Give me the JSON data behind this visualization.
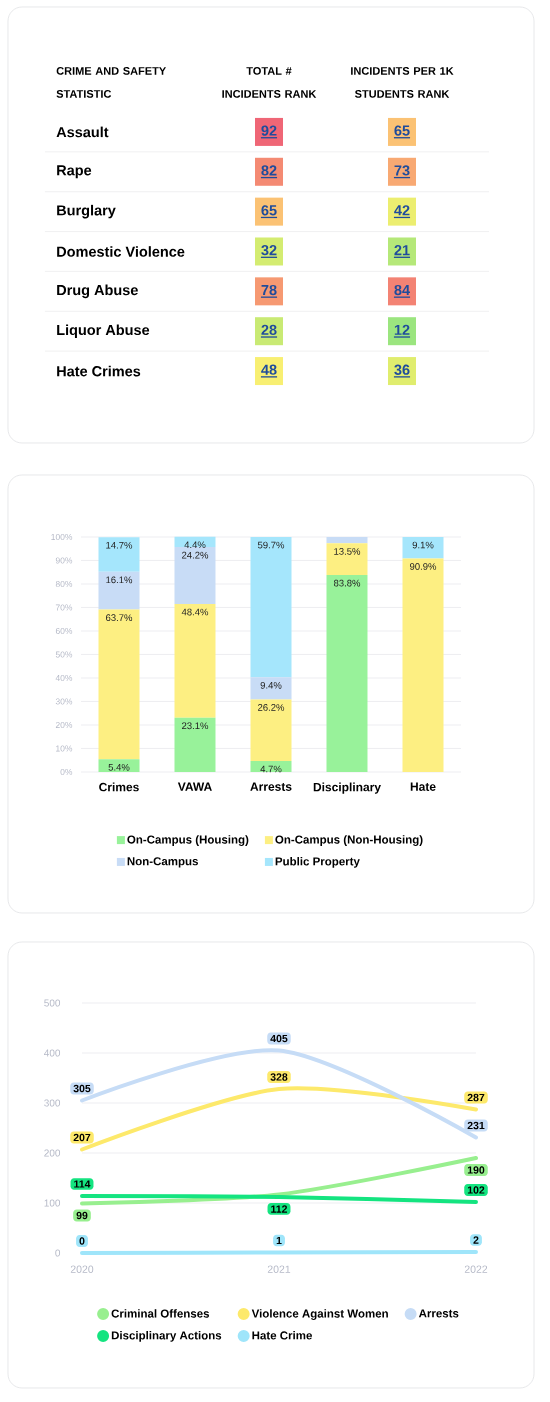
{
  "chart_data": [
    {
      "type": "heatmap",
      "ylabel": "CRIME AND SAFETY STATISTIC",
      "categories": [
        "TOTAL # INCIDENTS RANK",
        "INCIDENTS PER 1K STUDENTS RANK"
      ],
      "y_categories": [
        "Assault",
        "Rape",
        "Burglary",
        "Domestic Violence",
        "Drug Abuse",
        "Liquor Abuse",
        "Hate Crimes"
      ],
      "cells": [
        [
          92,
          65
        ],
        [
          82,
          73
        ],
        [
          65,
          42
        ],
        [
          32,
          21
        ],
        [
          78,
          84
        ],
        [
          28,
          12
        ],
        [
          48,
          36
        ]
      ],
      "data_labels": true
    },
    {
      "type": "bar",
      "stacked": true,
      "categories": [
        "Crimes",
        "VAWA",
        "Arrests",
        "Disciplinary",
        "Hate"
      ],
      "series": [
        {
          "name": "On-Campus (Housing)",
          "color": "#98f29a",
          "values": [
            5.4,
            23.1,
            4.7,
            83.8,
            0
          ],
          "value_labels": [
            "5.4%",
            "23.1%",
            "4.7%",
            "83.8%",
            null
          ]
        },
        {
          "name": "On-Campus (Non-Housing)",
          "color": "#fdef82",
          "values": [
            63.7,
            48.4,
            26.2,
            13.5,
            90.9
          ],
          "value_labels": [
            "63.7%",
            "48.4%",
            "26.2%",
            "13.5%",
            "90.9%"
          ]
        },
        {
          "name": "Non-Campus",
          "color": "#c8dcf6",
          "values": [
            16.1,
            24.2,
            9.4,
            2.7,
            0
          ],
          "value_labels": [
            "16.1%",
            "24.2%",
            "9.4%",
            null,
            null
          ]
        },
        {
          "name": "Public Property",
          "color": "#a5e6fc",
          "values": [
            14.7,
            4.4,
            59.7,
            0,
            9.1
          ],
          "value_labels": [
            "14.7%",
            "4.4%",
            "59.7%",
            null,
            "9.1%"
          ]
        }
      ],
      "ylim": [
        0,
        100
      ],
      "yticks": [
        {
          "value": 0,
          "label": "0%"
        },
        {
          "value": 10,
          "label": "10%"
        },
        {
          "value": 20,
          "label": "20%"
        },
        {
          "value": 30,
          "label": "30%"
        },
        {
          "value": 40,
          "label": "40%"
        },
        {
          "value": 50,
          "label": "50%"
        },
        {
          "value": 60,
          "label": "60%"
        },
        {
          "value": 70,
          "label": "70%"
        },
        {
          "value": 80,
          "label": "80%"
        },
        {
          "value": 90,
          "label": "90%"
        },
        {
          "value": 100,
          "label": "100%"
        }
      ],
      "grid": "y",
      "legend": "bottom"
    },
    {
      "type": "line",
      "categories": [
        "2020",
        "2021",
        "2022"
      ],
      "series": [
        {
          "name": "Criminal Offenses",
          "color": "#98ef8f",
          "values": [
            99,
            117,
            190
          ],
          "value_labels": [
            "99",
            null,
            "190"
          ]
        },
        {
          "name": "Violence Against Women",
          "color": "#fde96b",
          "values": [
            207,
            328,
            287
          ],
          "value_labels": [
            "207",
            "328",
            "287"
          ]
        },
        {
          "name": "Arrests",
          "color": "#c6dcf6",
          "values": [
            305,
            405,
            231
          ],
          "value_labels": [
            "305",
            "405",
            "231"
          ]
        },
        {
          "name": "Disciplinary Actions",
          "color": "#14e480",
          "values": [
            114,
            112,
            102
          ],
          "value_labels": [
            "114",
            "112",
            "102"
          ]
        },
        {
          "name": "Hate Crime",
          "color": "#9fe5fa",
          "values": [
            0,
            1,
            2
          ],
          "value_labels": [
            "0",
            "1",
            "2"
          ]
        }
      ],
      "ylim": [
        0,
        500
      ],
      "yticks": [
        0,
        100,
        200,
        300,
        400,
        500
      ],
      "grid": "y",
      "legend": "bottom"
    }
  ]
}
